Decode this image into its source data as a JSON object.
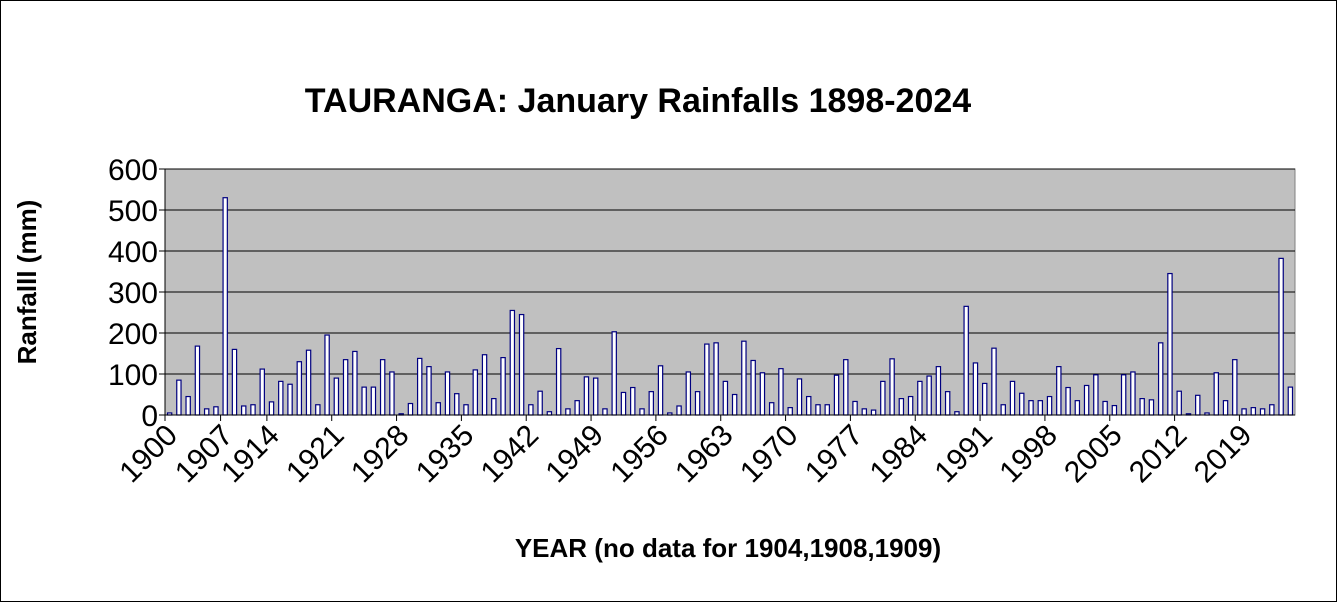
{
  "chart_data": {
    "type": "bar",
    "title": "TAURANGA:  January Rainfalls 1898-2024",
    "xlabel": "YEAR (no data for 1904,1908,1909)",
    "ylabel": "Ranfalll (mm)",
    "ylim": [
      0,
      600
    ],
    "yticks": [
      0,
      100,
      200,
      300,
      400,
      500,
      600
    ],
    "xtick_labels": [
      "1900",
      "1907",
      "1914",
      "1921",
      "1928",
      "1935",
      "1942",
      "1949",
      "1956",
      "1963",
      "1970",
      "1977",
      "1984",
      "1991",
      "1998",
      "2005",
      "2012",
      "2019"
    ],
    "grid": true,
    "legend": "none",
    "colors": {
      "plot_bg": "#c0c0c0",
      "bar_fill": "#ffffff",
      "bar_stroke": "#000080"
    },
    "categories": [
      "1900",
      "1901",
      "1902",
      "1903",
      "1905",
      "1906",
      "1907",
      "1910",
      "1911",
      "1912",
      "1913",
      "1914",
      "1915",
      "1916",
      "1917",
      "1918",
      "1919",
      "1920",
      "1921",
      "1922",
      "1923",
      "1924",
      "1925",
      "1926",
      "1927",
      "1928",
      "1929",
      "1930",
      "1931",
      "1932",
      "1933",
      "1934",
      "1935",
      "1936",
      "1937",
      "1938",
      "1939",
      "1940",
      "1941",
      "1942",
      "1943",
      "1944",
      "1945",
      "1946",
      "1947",
      "1948",
      "1949",
      "1950",
      "1951",
      "1952",
      "1953",
      "1954",
      "1955",
      "1956",
      "1957",
      "1958",
      "1959",
      "1960",
      "1961",
      "1962",
      "1963",
      "1964",
      "1965",
      "1966",
      "1967",
      "1968",
      "1969",
      "1970",
      "1971",
      "1972",
      "1973",
      "1974",
      "1975",
      "1976",
      "1977",
      "1978",
      "1979",
      "1980",
      "1981",
      "1982",
      "1983",
      "1984",
      "1985",
      "1986",
      "1987",
      "1988",
      "1989",
      "1990",
      "1991",
      "1992",
      "1993",
      "1994",
      "1995",
      "1996",
      "1997",
      "1998",
      "1999",
      "2000",
      "2001",
      "2002",
      "2003",
      "2004",
      "2005",
      "2006",
      "2007",
      "2008",
      "2009",
      "2010",
      "2011",
      "2012",
      "2013",
      "2014",
      "2015",
      "2016",
      "2017",
      "2018",
      "2019",
      "2020",
      "2021",
      "2022",
      "2023",
      "2024"
    ],
    "series": [
      {
        "values": [
          5,
          85,
          45,
          168,
          15,
          20,
          530,
          160,
          22,
          25,
          112,
          32,
          82,
          75,
          130,
          158,
          25,
          195,
          90,
          135,
          155,
          68,
          68,
          135,
          105,
          3,
          28,
          138,
          118,
          30,
          105,
          52,
          25,
          110,
          147,
          40,
          140,
          255,
          245,
          25,
          58,
          8,
          162,
          15,
          35,
          93,
          90,
          15,
          203,
          55,
          67,
          15,
          57,
          120,
          5,
          22,
          105,
          57,
          173,
          176,
          82,
          50,
          180,
          133,
          103,
          30,
          113,
          18,
          88,
          45,
          25,
          25,
          97,
          135,
          33,
          15,
          12,
          82,
          137,
          40,
          45,
          82,
          95,
          118,
          57,
          8,
          265,
          127,
          77,
          163,
          25,
          82,
          53,
          35,
          35,
          45,
          118,
          67,
          35,
          72,
          98,
          33,
          23,
          98,
          105,
          40,
          37,
          176,
          345,
          58,
          3,
          48,
          5,
          103,
          35,
          135,
          15,
          18,
          15,
          25,
          382,
          68
        ]
      }
    ]
  }
}
